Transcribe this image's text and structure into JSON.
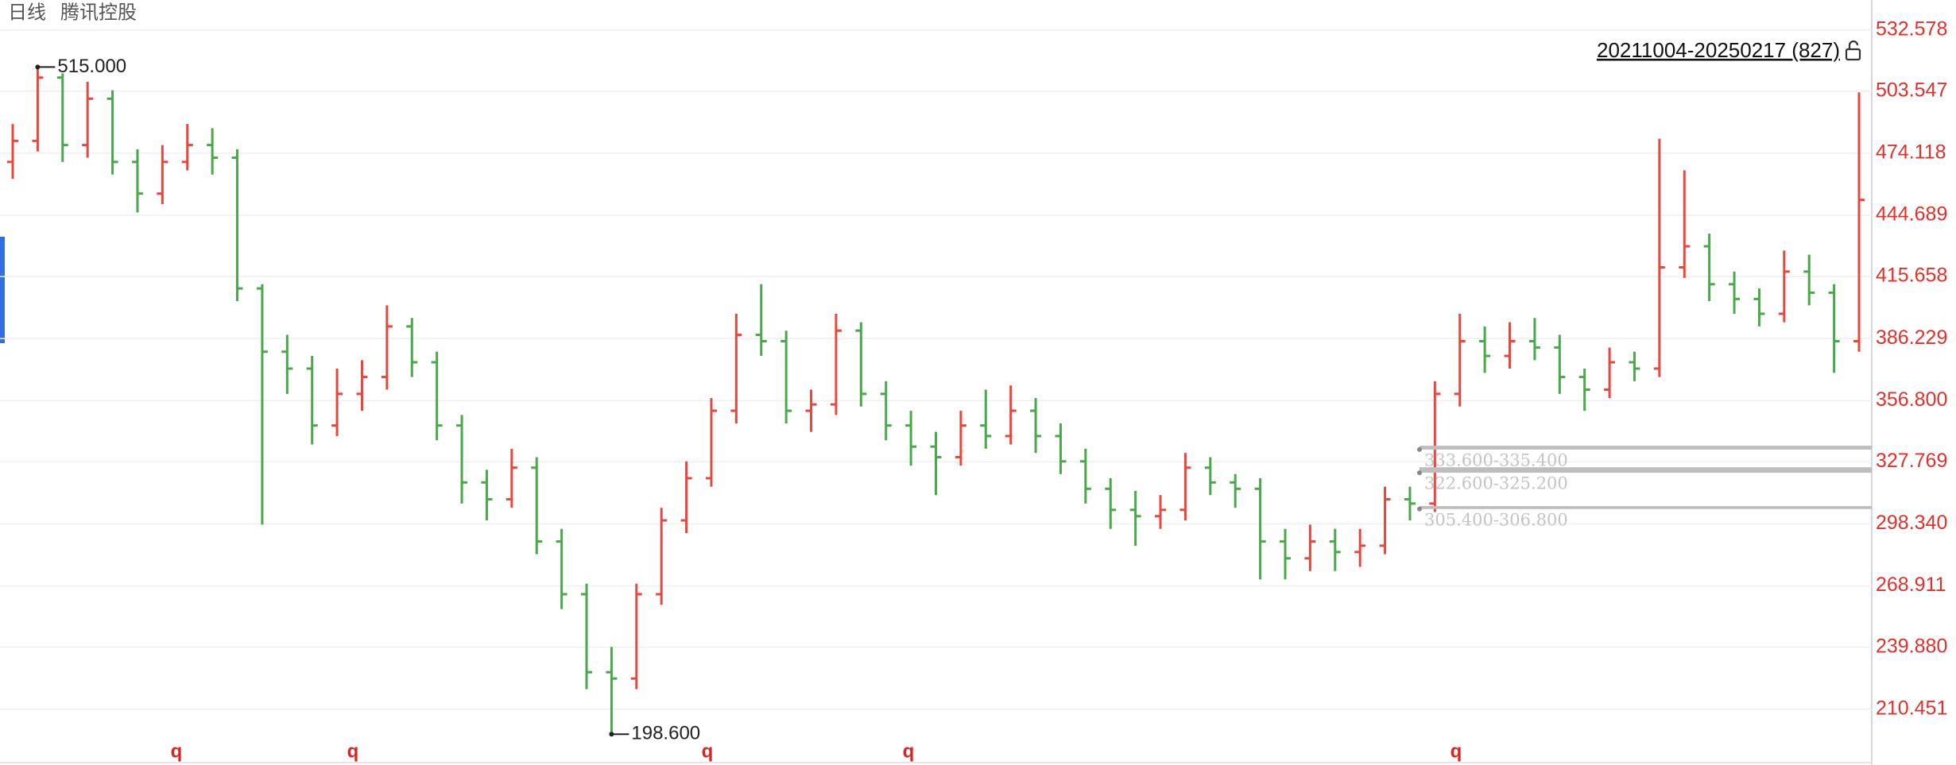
{
  "chart_data": {
    "type": "ohlc",
    "title": "日线",
    "subtitle": "腾讯控股",
    "range_label": "20211004-20250217 (827)",
    "up_color": "#e8473d",
    "down_color": "#48a84a",
    "axis_color": "#e0312a",
    "grid": true,
    "ylim": [
      184,
      546.8
    ],
    "yticks": [
      {
        "value": 532.578,
        "label": "532.578"
      },
      {
        "value": 503.547,
        "label": "503.547"
      },
      {
        "value": 474.118,
        "label": "474.118"
      },
      {
        "value": 444.689,
        "label": "444.689"
      },
      {
        "value": 415.658,
        "label": "415.658"
      },
      {
        "value": 386.229,
        "label": "386.229"
      },
      {
        "value": 356.8,
        "label": "356.800"
      },
      {
        "value": 327.769,
        "label": "327.769"
      },
      {
        "value": 298.34,
        "label": "298.340"
      },
      {
        "value": 268.911,
        "label": "268.911"
      },
      {
        "value": 239.88,
        "label": "239.880"
      },
      {
        "value": 210.451,
        "label": "210.451"
      }
    ],
    "open": [
      470,
      480,
      510,
      478,
      500,
      470,
      455,
      470,
      478,
      472,
      410,
      380,
      372,
      345,
      360,
      368,
      392,
      375,
      345,
      318,
      310,
      325,
      290,
      265,
      228,
      225,
      265,
      300,
      320,
      352,
      388,
      385,
      352,
      355,
      390,
      360,
      345,
      335,
      330,
      345,
      340,
      352,
      340,
      328,
      315,
      305,
      302,
      305,
      325,
      318,
      315,
      290,
      282,
      290,
      285,
      288,
      310,
      308,
      360,
      385,
      378,
      385,
      382,
      368,
      362,
      375,
      372,
      420,
      430,
      412,
      405,
      398,
      418,
      408,
      385
    ],
    "high": [
      488,
      515,
      512,
      508,
      504,
      476,
      478,
      488,
      486,
      476,
      412,
      388,
      378,
      372,
      376,
      402,
      396,
      380,
      350,
      324,
      334,
      330,
      296,
      270,
      240,
      270,
      306,
      328,
      358,
      398,
      412,
      390,
      362,
      398,
      394,
      366,
      352,
      342,
      352,
      362,
      364,
      358,
      346,
      334,
      320,
      314,
      312,
      332,
      330,
      322,
      320,
      296,
      298,
      296,
      296,
      316,
      316,
      366,
      398,
      392,
      394,
      396,
      388,
      372,
      382,
      380,
      481,
      466,
      436,
      418,
      410,
      428,
      426,
      412,
      503
    ],
    "low": [
      462,
      475,
      470,
      472,
      464,
      446,
      450,
      466,
      464,
      404,
      298,
      360,
      336,
      340,
      352,
      362,
      368,
      338,
      308,
      300,
      306,
      284,
      258,
      220,
      198.6,
      220,
      260,
      294,
      316,
      346,
      378,
      346,
      342,
      350,
      354,
      338,
      326,
      312,
      326,
      334,
      336,
      332,
      322,
      308,
      296,
      288,
      296,
      300,
      312,
      306,
      272,
      272,
      276,
      276,
      278,
      284,
      300,
      304,
      354,
      370,
      372,
      376,
      360,
      352,
      358,
      366,
      368,
      415,
      404,
      398,
      392,
      394,
      402,
      370,
      380
    ],
    "close": [
      480,
      510,
      478,
      500,
      470,
      455,
      470,
      478,
      472,
      410,
      380,
      372,
      345,
      360,
      368,
      392,
      375,
      345,
      318,
      310,
      325,
      290,
      265,
      228,
      225,
      265,
      300,
      320,
      352,
      388,
      385,
      352,
      355,
      390,
      360,
      345,
      335,
      330,
      345,
      340,
      352,
      340,
      328,
      315,
      305,
      302,
      305,
      325,
      318,
      315,
      290,
      282,
      290,
      285,
      288,
      310,
      308,
      360,
      385,
      378,
      385,
      382,
      368,
      362,
      375,
      372,
      420,
      430,
      412,
      405,
      398,
      418,
      408,
      385,
      452
    ],
    "annotations": [
      {
        "value": 515,
        "label": "515.000"
      },
      {
        "value": 198.6,
        "label": "198.600"
      }
    ],
    "levels": [
      {
        "low": 333.6,
        "high": 335.4,
        "label": "333.600-335.400"
      },
      {
        "low": 322.6,
        "high": 325.2,
        "label": "322.600-325.200"
      },
      {
        "low": 305.4,
        "high": 306.8,
        "label": "305.400-306.800"
      }
    ],
    "markers": [
      "q",
      "q",
      "q",
      "q",
      "q"
    ]
  }
}
